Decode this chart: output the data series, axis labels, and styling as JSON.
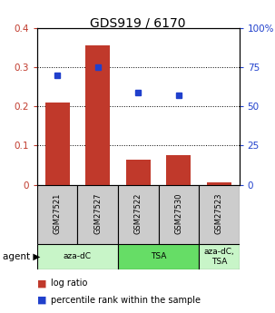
{
  "title": "GDS919 / 6170",
  "samples": [
    "GSM27521",
    "GSM27527",
    "GSM27522",
    "GSM27530",
    "GSM27523"
  ],
  "log_ratio": [
    0.21,
    0.355,
    0.065,
    0.075,
    0.005
  ],
  "percentile_rank": [
    70.0,
    75.0,
    59.0,
    57.0,
    null
  ],
  "bar_color": "#c0392b",
  "point_color": "#2040cc",
  "ylim_left": [
    0,
    0.4
  ],
  "ylim_right": [
    0,
    100
  ],
  "yticks_left": [
    0,
    0.1,
    0.2,
    0.3,
    0.4
  ],
  "ytick_labels_left": [
    "0",
    "0.1",
    "0.2",
    "0.3",
    "0.4"
  ],
  "yticks_right": [
    0,
    25,
    50,
    75,
    100
  ],
  "ytick_labels_right": [
    "0",
    "25",
    "50",
    "75",
    "100%"
  ],
  "group_labels": [
    "aza-dC",
    "TSA",
    "aza-dC,\nTSA"
  ],
  "group_colors": [
    "#c8f5c8",
    "#66dd66",
    "#c8f5c8"
  ],
  "group_starts": [
    0,
    2,
    4
  ],
  "group_counts": [
    2,
    2,
    1
  ],
  "legend_bar_label": "log ratio",
  "legend_point_label": "percentile rank within the sample",
  "background_color": "#ffffff",
  "plot_bg_color": "#ffffff",
  "sample_bg_color": "#cccccc"
}
